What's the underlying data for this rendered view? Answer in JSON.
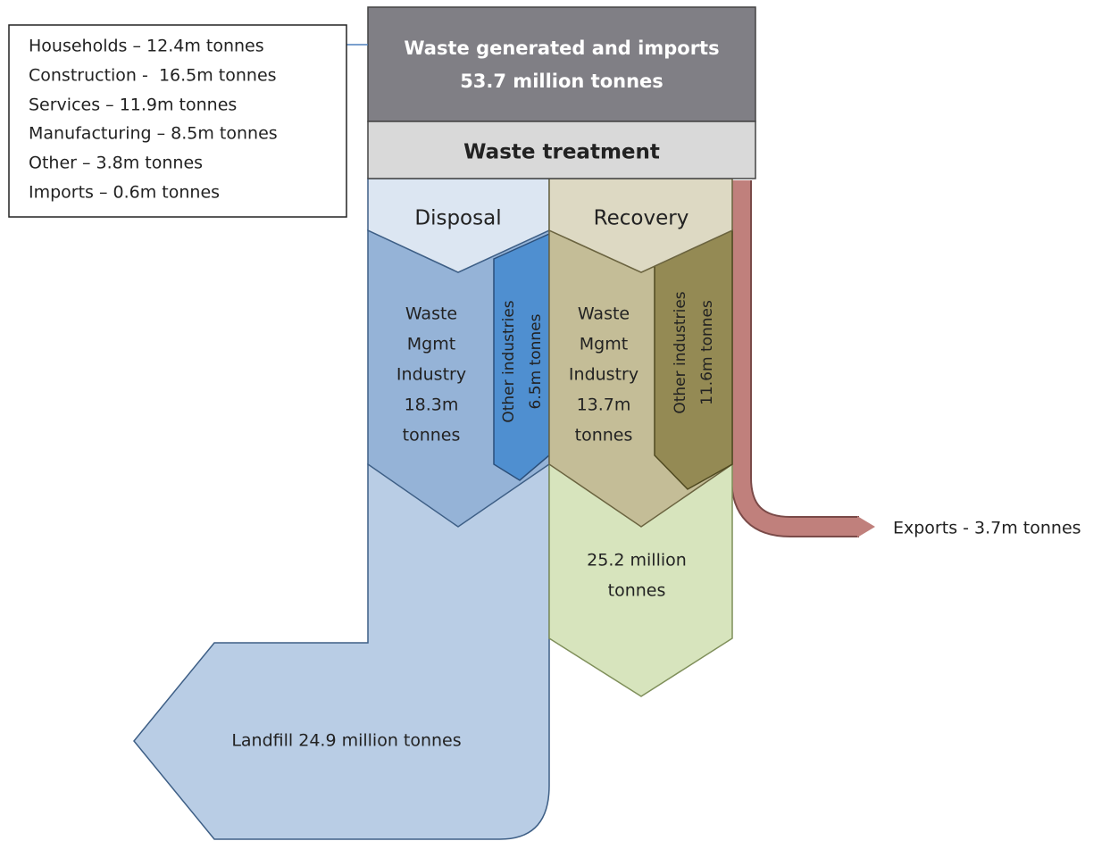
{
  "sources": {
    "lines": [
      "Households – 12.4m tonnes",
      "Construction -  16.5m tonnes",
      "Services – 11.9m tonnes",
      "Manufacturing – 8.5m tonnes",
      "Other – 3.8m tonnes",
      "Imports – 0.6m tonnes"
    ]
  },
  "generated": {
    "lines": [
      "Waste generated and imports",
      "53.7 million tonnes"
    ]
  },
  "treatment": {
    "label": "Waste treatment"
  },
  "disposal": {
    "header": "Disposal",
    "waste_mgmt": {
      "lines": [
        "Waste",
        "Mgmt",
        "Industry",
        "18.3m",
        "tonnes"
      ]
    },
    "other": {
      "lines": [
        "Other industries",
        "6.5m tonnes"
      ]
    },
    "landfill": "Landfill 24.9 million tonnes"
  },
  "recovery": {
    "header": "Recovery",
    "waste_mgmt": {
      "lines": [
        "Waste",
        "Mgmt",
        "Industry",
        "13.7m",
        "tonnes"
      ]
    },
    "other": {
      "lines": [
        "Other industries",
        "11.6m tonnes"
      ]
    },
    "total": {
      "lines": [
        "25.2 million",
        "tonnes"
      ]
    }
  },
  "exports": {
    "label": "Exports - 3.7m tonnes"
  }
}
